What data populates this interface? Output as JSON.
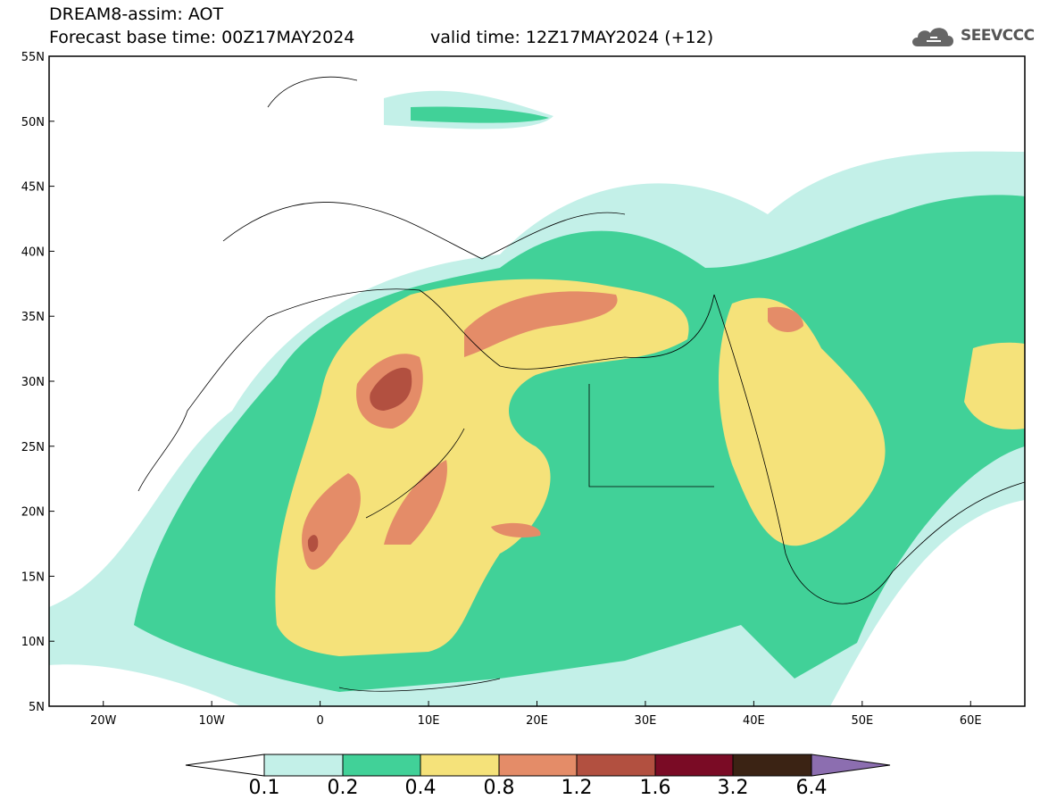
{
  "header": {
    "title": "DREAM8-assim: AOT",
    "base_time": "Forecast base time: 00Z17MAY2024",
    "valid_time": "valid time: 12Z17MAY2024 (+12)"
  },
  "logo": {
    "text": "SEEVCCC",
    "icon": "cloud-icon"
  },
  "map": {
    "region": "North Africa, Middle East and Europe",
    "lon_range": [
      -25,
      65
    ],
    "lat_range": [
      5,
      55
    ],
    "lat_labels": [
      "5N",
      "10N",
      "15N",
      "20N",
      "25N",
      "30N",
      "35N",
      "40N",
      "45N",
      "50N",
      "55N"
    ],
    "lon_labels": [
      "20W",
      "10W",
      "0",
      "10E",
      "20E",
      "30E",
      "40E",
      "50E",
      "60E"
    ]
  },
  "colorbar": {
    "labels": [
      "0.1",
      "0.2",
      "0.4",
      "0.8",
      "1.2",
      "1.6",
      "3.2",
      "6.4"
    ],
    "colors": [
      "#ffffff",
      "#c3f0e8",
      "#41d198",
      "#f5e27a",
      "#e48c68",
      "#b25040",
      "#7a0b25",
      "#3b2314",
      "#8c6eb0"
    ]
  }
}
